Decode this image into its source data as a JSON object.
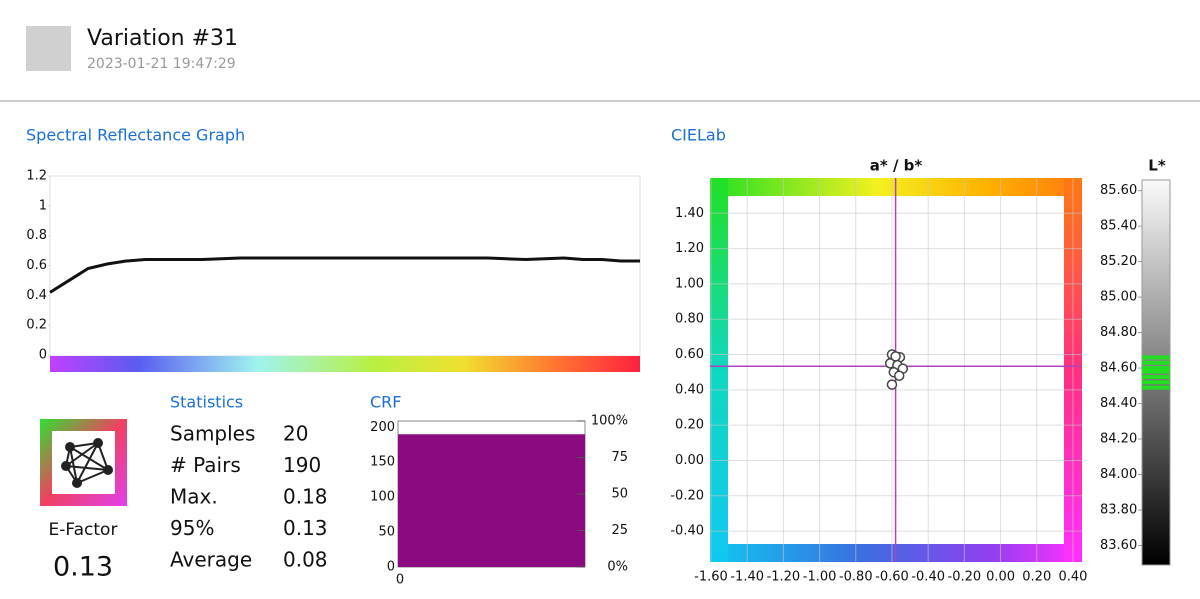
{
  "header": {
    "title": "Variation #31",
    "timestamp": "2023-01-21 19:47:29"
  },
  "spectral": {
    "type": "line",
    "title": "Spectral Reflectance Graph",
    "color": "#111111",
    "values": [
      0.42,
      0.5,
      0.58,
      0.61,
      0.63,
      0.64,
      0.64,
      0.64,
      0.64,
      0.645,
      0.65,
      0.65,
      0.65,
      0.65,
      0.65,
      0.65,
      0.65,
      0.65,
      0.65,
      0.65,
      0.65,
      0.65,
      0.65,
      0.65,
      0.645,
      0.64,
      0.645,
      0.65,
      0.64,
      0.64,
      0.63,
      0.63
    ],
    "ylim": [
      0,
      1.2
    ],
    "yticks": [
      0,
      0.2,
      0.4,
      0.6,
      0.8,
      1,
      1.2
    ]
  },
  "efactor": {
    "label": "E-Factor",
    "value": 0.13
  },
  "statistics": {
    "title": "Statistics",
    "rows": [
      [
        "Samples",
        20
      ],
      [
        "# Pairs",
        190
      ],
      [
        "Max.",
        0.18
      ],
      [
        "95%",
        0.13
      ],
      [
        "Average",
        0.08
      ]
    ]
  },
  "crf": {
    "type": "bar",
    "title": "CRF",
    "value": 190,
    "color": "#8b0a80",
    "ylim": [
      0,
      209
    ],
    "yticks": [
      0,
      50,
      100,
      150,
      200
    ],
    "y2lim": [
      0,
      100
    ],
    "y2ticks": [
      {
        "value": 0,
        "label": "0%"
      },
      25,
      50,
      75,
      {
        "value": 100,
        "label": "100%"
      }
    ],
    "xticks": [
      0
    ]
  },
  "cielab": {
    "type": "scatter",
    "title": "CIELab",
    "axis_title": "a* / b*",
    "x": [
      -0.6,
      -0.556,
      -0.61,
      -0.57,
      -0.54,
      -0.59,
      -0.56,
      -0.6,
      -0.58
    ],
    "y": [
      0.6,
      0.585,
      0.55,
      0.54,
      0.52,
      0.5,
      0.48,
      0.43,
      0.59
    ],
    "crosshair": {
      "x": -0.58,
      "y": 0.534
    },
    "xlim": [
      -1.6,
      0.45
    ],
    "ylim": [
      -0.575,
      1.6
    ],
    "xticks": [
      {
        "value": -1.6,
        "label": "-1.60"
      },
      {
        "value": -1.4,
        "label": "-1.40"
      },
      {
        "value": -1.2,
        "label": "-1.20"
      },
      {
        "value": -1.0,
        "label": "-1.00"
      },
      {
        "value": -0.8,
        "label": "-0.80"
      },
      {
        "value": -0.6,
        "label": "-0.60"
      },
      {
        "value": -0.4,
        "label": "-0.40"
      },
      {
        "value": -0.2,
        "label": "-0.20"
      },
      {
        "value": 0,
        "label": "0.00"
      },
      {
        "value": 0.2,
        "label": "0.20"
      },
      {
        "value": 0.4,
        "label": "0.40"
      }
    ],
    "yticks": [
      {
        "value": -0.4,
        "label": "-0.40"
      },
      {
        "value": -0.2,
        "label": "-0.20"
      },
      {
        "value": 0,
        "label": "0.00"
      },
      {
        "value": 0.2,
        "label": "0.20"
      },
      {
        "value": 0.4,
        "label": "0.40"
      },
      {
        "value": 0.6,
        "label": "0.60"
      },
      {
        "value": 0.8,
        "label": "0.80"
      },
      {
        "value": 1.0,
        "label": "1.00"
      },
      {
        "value": 1.2,
        "label": "1.20"
      },
      {
        "value": 1.4,
        "label": "1.40"
      }
    ]
  },
  "lightness": {
    "title": "L*",
    "ylim": [
      83.49,
      85.66
    ],
    "yticks": [
      {
        "value": 85.6,
        "label": "85.60"
      },
      {
        "value": 85.4,
        "label": "85.40"
      },
      {
        "value": 85.2,
        "label": "85.20"
      },
      {
        "value": 85.0,
        "label": "85.00"
      },
      {
        "value": 84.8,
        "label": "84.80"
      },
      {
        "value": 84.6,
        "label": "84.60"
      },
      {
        "value": 84.4,
        "label": "84.40"
      },
      {
        "value": 84.2,
        "label": "84.20"
      },
      {
        "value": 84.0,
        "label": "84.00"
      },
      {
        "value": 83.8,
        "label": "83.80"
      },
      {
        "value": 83.6,
        "label": "83.60"
      }
    ],
    "values": [
      84.66,
      84.63,
      84.6,
      84.58,
      84.55,
      84.52,
      84.49
    ],
    "color": "#22dd22"
  }
}
